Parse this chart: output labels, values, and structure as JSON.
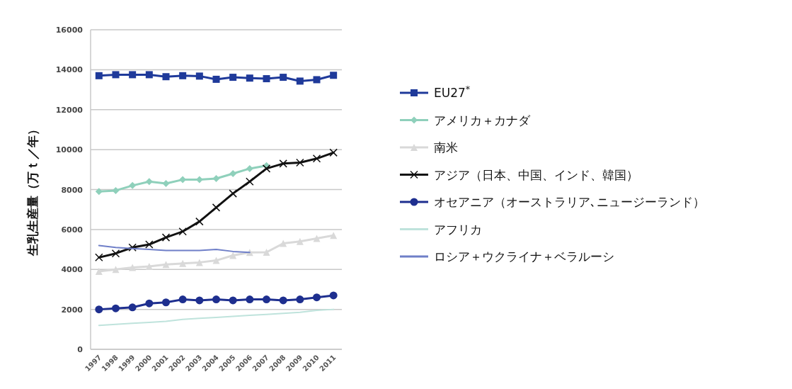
{
  "chart_data": {
    "type": "line",
    "ylabel": "生乳生産量（万ｔ／年）",
    "categories": [
      "1997",
      "1998",
      "1999",
      "2000",
      "2001",
      "2002",
      "2003",
      "2004",
      "2005",
      "2006",
      "2007",
      "2008",
      "2009",
      "2010",
      "2011"
    ],
    "ylim": [
      0,
      16000
    ],
    "yticks": [
      0,
      2000,
      4000,
      6000,
      8000,
      10000,
      12000,
      14000,
      16000
    ],
    "grid": "y",
    "legend": "right",
    "series": [
      {
        "name": "EU27$^{*}$",
        "color": "#1f3a9a",
        "marker": "square",
        "values": [
          13700,
          13750,
          13750,
          13750,
          13650,
          13700,
          13680,
          13520,
          13620,
          13580,
          13550,
          13620,
          13430,
          13500,
          13720
        ]
      },
      {
        "name": "アメリカ＋カナダ",
        "color": "#8fd0bb",
        "marker": "diamond",
        "values": [
          7900,
          7950,
          8200,
          8400,
          8300,
          8500,
          8500,
          8550,
          8800,
          9050,
          9200,
          null,
          null,
          null,
          null
        ]
      },
      {
        "name": "南米",
        "color": "#d9d9d9",
        "marker": "triangle",
        "values": [
          3900,
          4000,
          4100,
          4150,
          4250,
          4300,
          4350,
          4450,
          4700,
          4850,
          4860,
          5300,
          5400,
          5550,
          5700
        ]
      },
      {
        "name": "アジア（日本、中国、インド、韓国）",
        "color": "#111111",
        "marker": "cross",
        "values": [
          4600,
          4800,
          5100,
          5250,
          5600,
          5900,
          6400,
          7100,
          7800,
          8400,
          9050,
          9300,
          9350,
          9550,
          9850
        ]
      },
      {
        "name": "オセアニア（オーストラリア､ニュージーランド）",
        "color": "#1e2f8f",
        "marker": "circle",
        "values": [
          2000,
          2050,
          2100,
          2300,
          2350,
          2500,
          2450,
          2500,
          2450,
          2500,
          2500,
          2450,
          2500,
          2600,
          2700
        ]
      },
      {
        "name": "アフリカ",
        "color": "#bfe3dc",
        "marker": "none",
        "values": [
          1200,
          1250,
          1300,
          1350,
          1400,
          1500,
          1550,
          1600,
          1650,
          1700,
          1750,
          1800,
          1850,
          1950,
          2000
        ]
      },
      {
        "name": "ロシア＋ウクライナ＋ベラルーシ",
        "color": "#6f7fc8",
        "marker": "none",
        "values": [
          5200,
          5100,
          5050,
          5000,
          4950,
          4950,
          4950,
          5000,
          4900,
          4850,
          null,
          null,
          null,
          null,
          null
        ]
      }
    ]
  }
}
